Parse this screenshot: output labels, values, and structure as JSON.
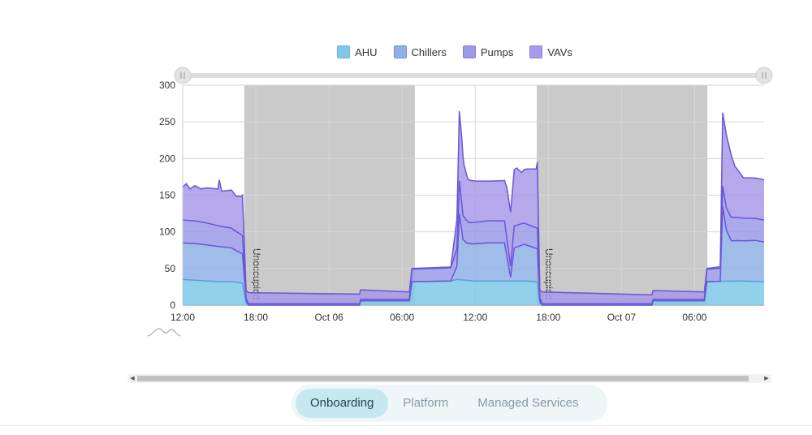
{
  "chart_data": {
    "type": "area",
    "stacked": true,
    "legend_position": "top",
    "grid": true,
    "ylim": [
      0,
      300
    ],
    "yticks": [
      0,
      50,
      100,
      150,
      200,
      250,
      300
    ],
    "x_tick_labels": [
      {
        "x": 0,
        "label": "12:00"
      },
      {
        "x": 6,
        "label": "18:00"
      },
      {
        "x": 12,
        "label": "Oct 06"
      },
      {
        "x": 18,
        "label": "06:00"
      },
      {
        "x": 24,
        "label": "12:00"
      },
      {
        "x": 30,
        "label": "18:00"
      },
      {
        "x": 36,
        "label": "Oct 07"
      },
      {
        "x": 42,
        "label": "06:00"
      }
    ],
    "x_range": [
      0,
      47.7
    ],
    "unoccupied_bands": [
      {
        "from": 5.05,
        "to": 19.05,
        "label": "Unoccupied"
      },
      {
        "from": 29.05,
        "to": 43.05,
        "label": "Unoccupied"
      }
    ],
    "series": [
      {
        "name": "AHU",
        "color": "#7ec9e8",
        "points": [
          [
            0,
            35
          ],
          [
            1,
            34
          ],
          [
            2,
            33
          ],
          [
            3,
            32
          ],
          [
            4,
            32
          ],
          [
            4.9,
            30
          ],
          [
            5.2,
            3
          ],
          [
            5.4,
            0
          ],
          [
            14.5,
            0
          ],
          [
            14.6,
            6
          ],
          [
            18.6,
            6
          ],
          [
            18.8,
            32
          ],
          [
            22,
            33
          ],
          [
            22.5,
            35
          ],
          [
            24,
            33
          ],
          [
            26,
            33
          ],
          [
            28,
            33
          ],
          [
            29.1,
            32
          ],
          [
            29.3,
            3
          ],
          [
            29.5,
            0
          ],
          [
            38.5,
            0
          ],
          [
            38.6,
            6
          ],
          [
            42.8,
            6
          ],
          [
            43,
            32
          ],
          [
            45.5,
            33
          ],
          [
            47.7,
            32
          ]
        ]
      },
      {
        "name": "Chillers",
        "color": "#8fb2e6",
        "points": [
          [
            0,
            50
          ],
          [
            1,
            50
          ],
          [
            2,
            49
          ],
          [
            3,
            48
          ],
          [
            4,
            46
          ],
          [
            4.9,
            40
          ],
          [
            5.2,
            4
          ],
          [
            5.4,
            0
          ],
          [
            18.8,
            0
          ],
          [
            22,
            0
          ],
          [
            22.5,
            18
          ],
          [
            22.7,
            90
          ],
          [
            23,
            55
          ],
          [
            23.3,
            51
          ],
          [
            23.6,
            50
          ],
          [
            25,
            52
          ],
          [
            26.4,
            52
          ],
          [
            26.9,
            5
          ],
          [
            27.2,
            45
          ],
          [
            28,
            50
          ],
          [
            29.1,
            45
          ],
          [
            29.3,
            4
          ],
          [
            29.5,
            0
          ],
          [
            43,
            0
          ],
          [
            44.1,
            0
          ],
          [
            44.3,
            102
          ],
          [
            44.6,
            70
          ],
          [
            45,
            55
          ],
          [
            46,
            55
          ],
          [
            47,
            56
          ],
          [
            47.7,
            54
          ]
        ]
      },
      {
        "name": "Pumps",
        "color": "#9a9ae8",
        "points": [
          [
            0,
            31
          ],
          [
            1,
            31
          ],
          [
            2,
            30
          ],
          [
            3,
            28
          ],
          [
            4,
            27
          ],
          [
            4.9,
            25
          ],
          [
            5.2,
            3
          ],
          [
            5.4,
            2
          ],
          [
            14.5,
            2
          ],
          [
            18.6,
            2
          ],
          [
            18.8,
            17
          ],
          [
            22,
            18
          ],
          [
            22.5,
            24
          ],
          [
            22.7,
            45
          ],
          [
            23,
            33
          ],
          [
            23.5,
            29
          ],
          [
            25,
            30
          ],
          [
            26.4,
            30
          ],
          [
            26.9,
            15
          ],
          [
            27.2,
            30
          ],
          [
            28,
            29
          ],
          [
            29.1,
            28
          ],
          [
            29.3,
            3
          ],
          [
            29.5,
            2
          ],
          [
            42.8,
            2
          ],
          [
            43,
            17
          ],
          [
            44.1,
            18
          ],
          [
            44.3,
            28
          ],
          [
            44.6,
            30
          ],
          [
            45,
            32
          ],
          [
            46,
            31
          ],
          [
            47,
            30
          ],
          [
            47.7,
            30
          ]
        ]
      },
      {
        "name": "VAVs",
        "color": "#a89ae8",
        "points": [
          [
            0,
            45
          ],
          [
            0.3,
            50
          ],
          [
            0.6,
            43
          ],
          [
            1,
            48
          ],
          [
            1.5,
            45
          ],
          [
            2,
            48
          ],
          [
            2.9,
            50
          ],
          [
            3.0,
            63
          ],
          [
            3.2,
            48
          ],
          [
            3.6,
            50
          ],
          [
            4,
            52
          ],
          [
            4.4,
            48
          ],
          [
            4.8,
            52
          ],
          [
            4.9,
            55
          ],
          [
            5.2,
            10
          ],
          [
            5.4,
            15
          ],
          [
            14.5,
            13
          ],
          [
            18.6,
            10
          ],
          [
            18.8,
            1
          ],
          [
            22,
            1
          ],
          [
            22.5,
            40
          ],
          [
            22.7,
            95
          ],
          [
            22.9,
            90
          ],
          [
            23.1,
            70
          ],
          [
            23.4,
            58
          ],
          [
            25,
            54
          ],
          [
            26.4,
            55
          ],
          [
            26.6,
            70
          ],
          [
            27,
            75
          ],
          [
            27.4,
            78
          ],
          [
            27.8,
            70
          ],
          [
            28.2,
            75
          ],
          [
            29,
            80
          ],
          [
            29.1,
            90
          ],
          [
            29.3,
            10
          ],
          [
            29.5,
            16
          ],
          [
            42.8,
            10
          ],
          [
            43,
            1
          ],
          [
            44.1,
            2
          ],
          [
            44.3,
            100
          ],
          [
            44.6,
            100
          ],
          [
            45,
            85
          ],
          [
            45.3,
            70
          ],
          [
            46,
            55
          ],
          [
            47,
            55
          ],
          [
            47.7,
            55
          ]
        ]
      }
    ]
  },
  "navigator": {
    "icon": "range-sparkline-icon"
  },
  "tabs": [
    {
      "label": "Onboarding",
      "active": true
    },
    {
      "label": "Platform",
      "active": false
    },
    {
      "label": "Managed Services",
      "active": false
    }
  ],
  "scrollbar": {
    "left_arrow": "◀",
    "right_arrow": "▶"
  }
}
